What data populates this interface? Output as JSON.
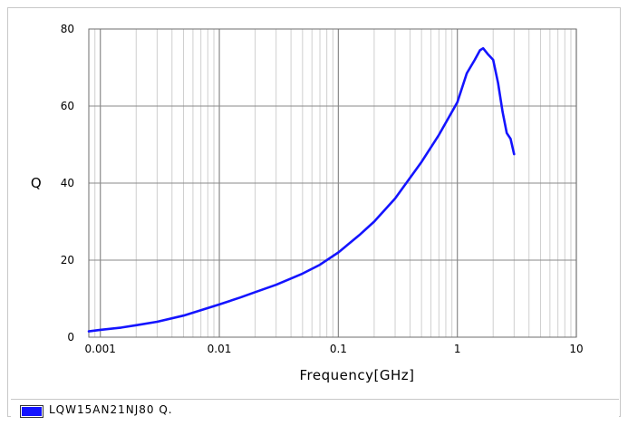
{
  "chart_data": {
    "type": "line",
    "xscale": "log",
    "xlabel": "Frequency[GHz]",
    "ylabel": "Q",
    "xlim": [
      0.0008,
      10
    ],
    "ylim": [
      0,
      80
    ],
    "x_ticks": [
      "0.001",
      "0.01",
      "0.1",
      "1",
      "10"
    ],
    "y_ticks": [
      "0",
      "20",
      "40",
      "60",
      "80"
    ],
    "grid": true,
    "legend_position": "bottom",
    "series": [
      {
        "name": "LQW15AN21NJ80  Q.",
        "color": "#1414ff",
        "x": [
          0.0008,
          0.001,
          0.0015,
          0.002,
          0.003,
          0.005,
          0.007,
          0.01,
          0.015,
          0.02,
          0.03,
          0.05,
          0.07,
          0.1,
          0.15,
          0.2,
          0.3,
          0.5,
          0.7,
          1.0,
          1.2,
          1.4,
          1.55,
          1.65,
          1.8,
          2.0,
          2.2,
          2.4,
          2.6,
          2.8,
          3.0
        ],
        "y": [
          1.5,
          1.9,
          2.5,
          3.1,
          4.0,
          5.6,
          7.0,
          8.5,
          10.3,
          11.7,
          13.6,
          16.5,
          18.8,
          22.0,
          26.5,
          30.0,
          36.0,
          45.5,
          52.5,
          61.0,
          68.5,
          72.0,
          74.5,
          75.0,
          73.5,
          72.0,
          66.0,
          58.5,
          53.0,
          51.5,
          47.5
        ]
      }
    ]
  }
}
